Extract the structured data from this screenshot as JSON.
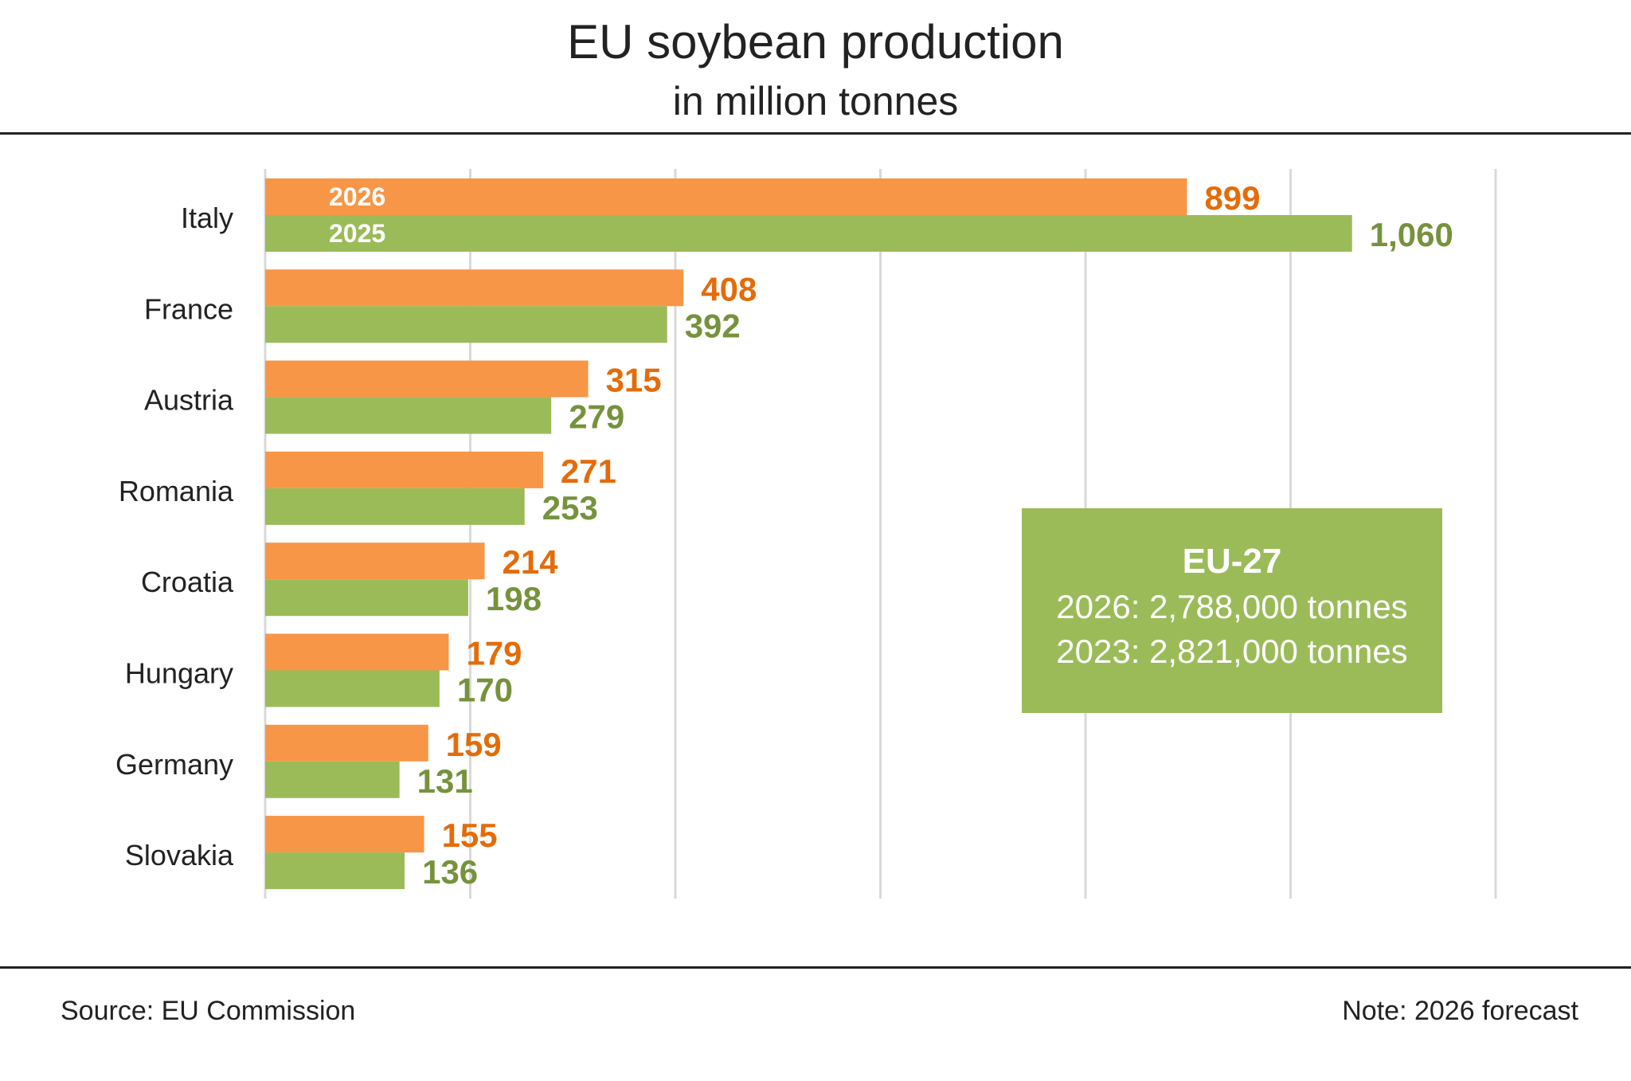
{
  "title": "EU soybean production",
  "subtitle": "in million tonnes",
  "chart_data": {
    "type": "bar",
    "orientation": "horizontal",
    "categories": [
      "Italy",
      "France",
      "Austria",
      "Romania",
      "Croatia",
      "Hungary",
      "Germany",
      "Slovakia"
    ],
    "series": [
      {
        "name": "2026",
        "color": "#f79646",
        "label_color": "#e36c0a",
        "values": [
          899,
          408,
          315,
          271,
          214,
          179,
          159,
          155
        ],
        "labels": [
          "899",
          "408",
          "315",
          "271",
          "214",
          "179",
          "159",
          "155"
        ]
      },
      {
        "name": "2025",
        "color": "#9bbb59",
        "label_color": "#76923c",
        "values": [
          1060,
          392,
          279,
          253,
          198,
          170,
          131,
          136
        ],
        "labels": [
          "1,060",
          "392",
          "279",
          "253",
          "198",
          "170",
          "131",
          "136"
        ]
      }
    ],
    "xlim": [
      0,
      1200
    ],
    "grid": true,
    "legend": "inside-first-bars"
  },
  "eu_box": {
    "heading": "EU-27",
    "line1": "2026: 2,788,000 tonnes",
    "line2": "2023: 2,821,000 tonnes"
  },
  "footer": {
    "source": "Source:  EU Commission",
    "note": "Note: 2026 forecast"
  }
}
